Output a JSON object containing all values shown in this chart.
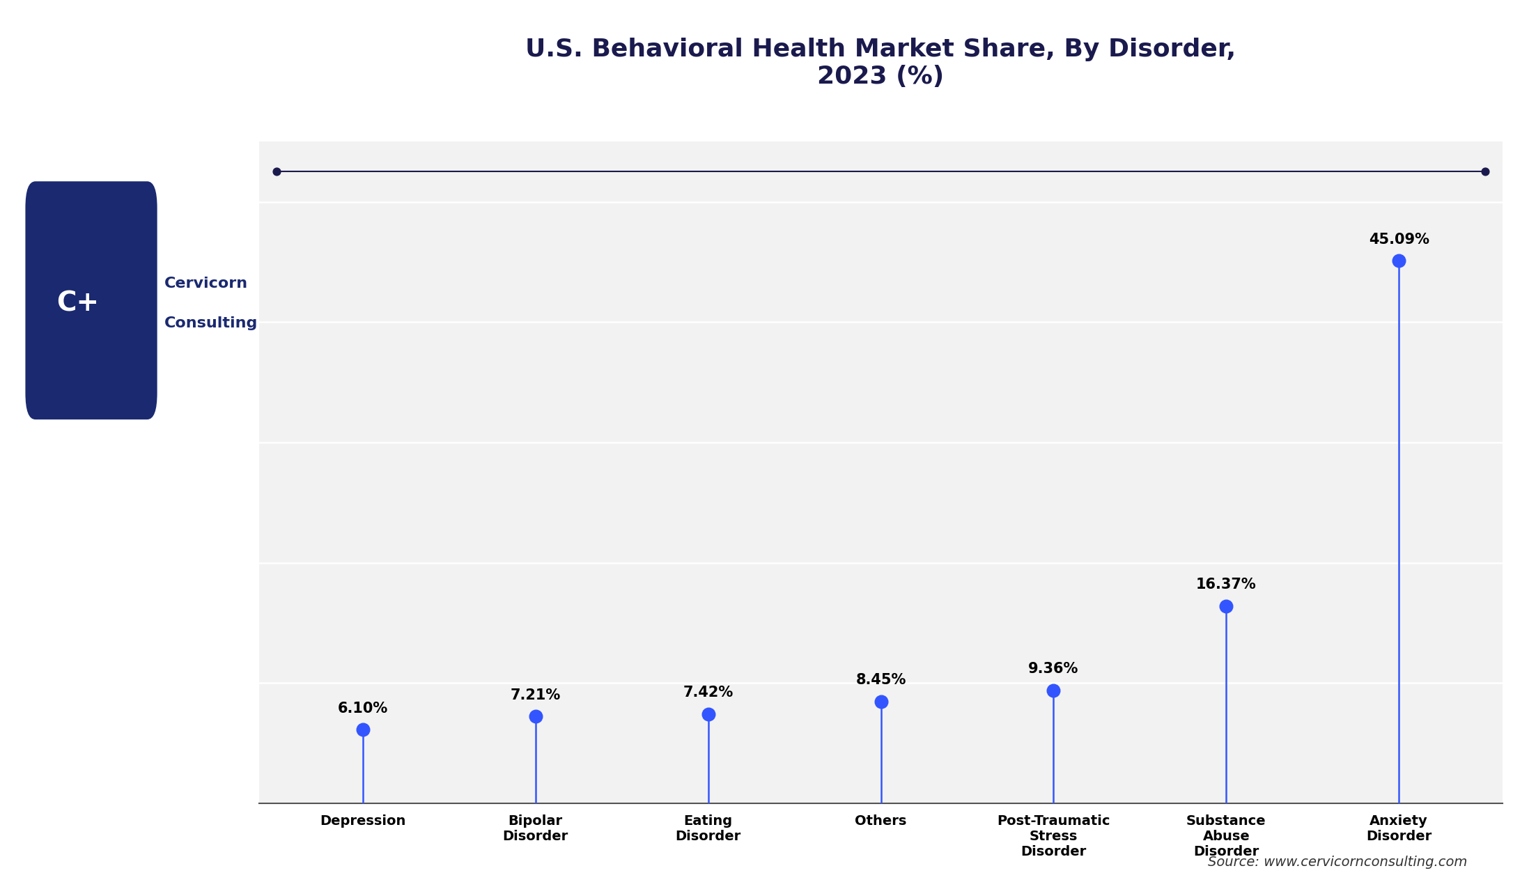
{
  "title": "U.S. Behavioral Health Market Share, By Disorder,\n2023 (%)",
  "categories": [
    "Depression",
    "Bipolar\nDisorder",
    "Eating\nDisorder",
    "Others",
    "Post-Traumatic\nStress\nDisorder",
    "Substance\nAbuse\nDisorder",
    "Anxiety\nDisorder"
  ],
  "values": [
    6.1,
    7.21,
    7.42,
    8.45,
    9.36,
    16.37,
    45.09
  ],
  "labels": [
    "6.10%",
    "7.21%",
    "7.42%",
    "8.45%",
    "9.36%",
    "16.37%",
    "45.09%"
  ],
  "dot_color": "#3355FF",
  "line_color": "#3355FF",
  "title_color": "#1a1a4e",
  "bg_color": "#FFFFFF",
  "plot_bg_color": "#f2f2f2",
  "grid_color": "#FFFFFF",
  "source_text": "Source: www.cervicornconsulting.com",
  "ylim_max": 50,
  "marker_size": 180,
  "line_width": 1.8,
  "title_fontsize": 26,
  "label_fontsize": 15,
  "tick_fontsize": 14,
  "source_fontsize": 14,
  "logo_brand_color": "#1a2970",
  "logo_box_color": "#1a2970",
  "top_line_color": "#1a1a4e"
}
